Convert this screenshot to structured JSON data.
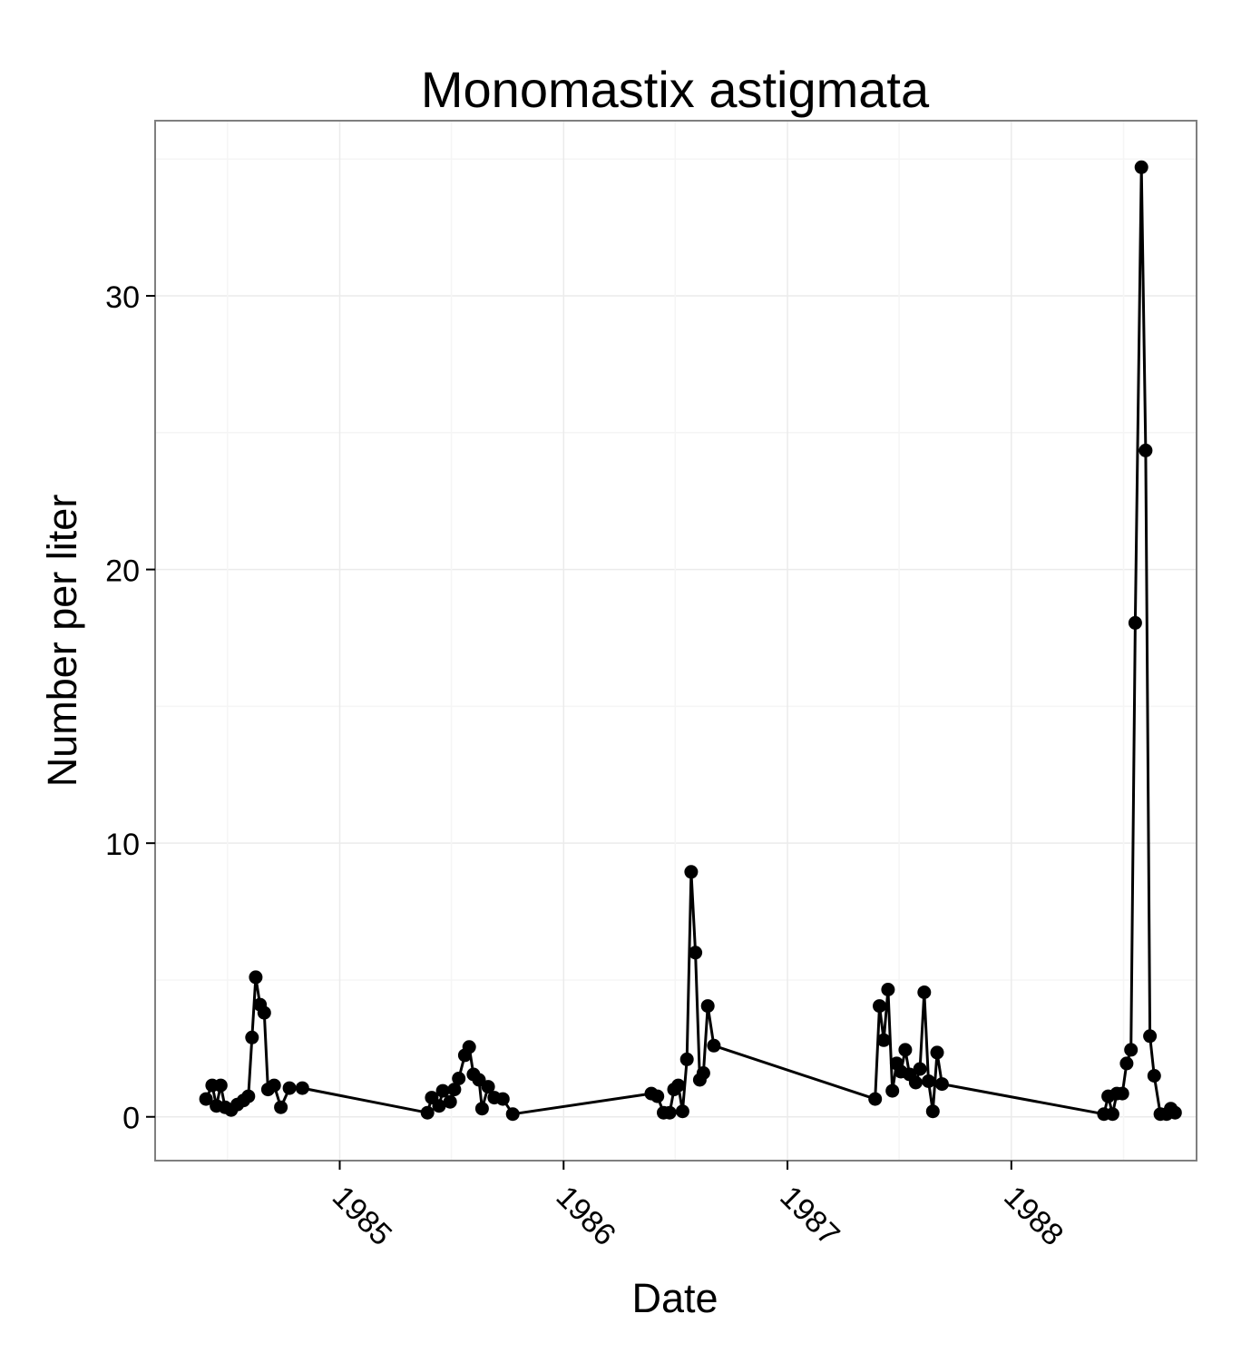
{
  "chart_data": {
    "type": "line",
    "title": "Monomastix astigmata",
    "xlabel": "Date",
    "ylabel": "Number per liter",
    "x_ticks": [
      "1985",
      "1986",
      "1987",
      "1988"
    ],
    "y_ticks": [
      0,
      10,
      20,
      30
    ],
    "ylim": [
      -1.6,
      36.4
    ],
    "xlim": [
      "1984-03-06",
      "1988-10-29"
    ],
    "grid": true,
    "markers": true,
    "colors": {
      "line": "#000000",
      "point": "#000000",
      "grid": "#ebebeb",
      "border": "#7f7f7f"
    },
    "series": [
      {
        "points": [
          [
            "1984-05-28",
            0.65
          ],
          [
            "1984-06-07",
            1.15
          ],
          [
            "1984-06-14",
            0.4
          ],
          [
            "1984-06-21",
            1.15
          ],
          [
            "1984-06-28",
            0.35
          ],
          [
            "1984-07-08",
            0.25
          ],
          [
            "1984-07-18",
            0.45
          ],
          [
            "1984-07-28",
            0.6
          ],
          [
            "1984-08-05",
            0.75
          ],
          [
            "1984-08-11",
            2.9
          ],
          [
            "1984-08-17",
            5.1
          ],
          [
            "1984-08-24",
            4.1
          ],
          [
            "1984-08-31",
            3.8
          ],
          [
            "1984-09-06",
            1.0
          ],
          [
            "1984-09-16",
            1.15
          ],
          [
            "1984-09-27",
            0.35
          ],
          [
            "1984-10-11",
            1.05
          ],
          [
            "1984-11-01",
            1.05
          ],
          [
            "1985-05-24",
            0.15
          ],
          [
            "1985-05-31",
            0.7
          ],
          [
            "1985-06-12",
            0.4
          ],
          [
            "1985-06-18",
            0.95
          ],
          [
            "1985-06-30",
            0.55
          ],
          [
            "1985-07-07",
            1.0
          ],
          [
            "1985-07-14",
            1.4
          ],
          [
            "1985-07-24",
            2.25
          ],
          [
            "1985-07-31",
            2.55
          ],
          [
            "1985-08-07",
            1.55
          ],
          [
            "1985-08-16",
            1.35
          ],
          [
            "1985-08-21",
            0.3
          ],
          [
            "1985-08-31",
            1.1
          ],
          [
            "1985-09-10",
            0.7
          ],
          [
            "1985-09-24",
            0.65
          ],
          [
            "1985-10-10",
            0.1
          ],
          [
            "1986-05-24",
            0.85
          ],
          [
            "1986-06-03",
            0.75
          ],
          [
            "1986-06-13",
            0.15
          ],
          [
            "1986-06-23",
            0.15
          ],
          [
            "1986-06-30",
            1.0
          ],
          [
            "1986-07-07",
            1.15
          ],
          [
            "1986-07-14",
            0.2
          ],
          [
            "1986-07-21",
            2.1
          ],
          [
            "1986-07-28",
            8.95
          ],
          [
            "1986-08-04",
            6.0
          ],
          [
            "1986-08-11",
            1.35
          ],
          [
            "1986-08-17",
            1.6
          ],
          [
            "1986-08-24",
            4.05
          ],
          [
            "1986-09-03",
            2.6
          ],
          [
            "1987-05-24",
            0.65
          ],
          [
            "1987-05-31",
            4.05
          ],
          [
            "1987-06-07",
            2.8
          ],
          [
            "1987-06-14",
            4.65
          ],
          [
            "1987-06-21",
            0.95
          ],
          [
            "1987-06-28",
            1.95
          ],
          [
            "1987-07-05",
            1.65
          ],
          [
            "1987-07-12",
            2.45
          ],
          [
            "1987-07-19",
            1.55
          ],
          [
            "1987-07-29",
            1.25
          ],
          [
            "1987-08-05",
            1.75
          ],
          [
            "1987-08-12",
            4.55
          ],
          [
            "1987-08-19",
            1.3
          ],
          [
            "1987-08-26",
            0.2
          ],
          [
            "1987-09-02",
            2.35
          ],
          [
            "1987-09-10",
            1.2
          ],
          [
            "1988-05-31",
            0.1
          ],
          [
            "1988-06-07",
            0.75
          ],
          [
            "1988-06-14",
            0.1
          ],
          [
            "1988-06-21",
            0.85
          ],
          [
            "1988-06-30",
            0.85
          ],
          [
            "1988-07-07",
            1.95
          ],
          [
            "1988-07-14",
            2.45
          ],
          [
            "1988-07-21",
            18.05
          ],
          [
            "1988-07-31",
            34.7
          ],
          [
            "1988-08-07",
            24.35
          ],
          [
            "1988-08-14",
            2.95
          ],
          [
            "1988-08-21",
            1.5
          ],
          [
            "1988-08-31",
            0.1
          ],
          [
            "1988-09-10",
            0.1
          ],
          [
            "1988-09-17",
            0.3
          ],
          [
            "1988-09-24",
            0.15
          ]
        ]
      }
    ]
  }
}
